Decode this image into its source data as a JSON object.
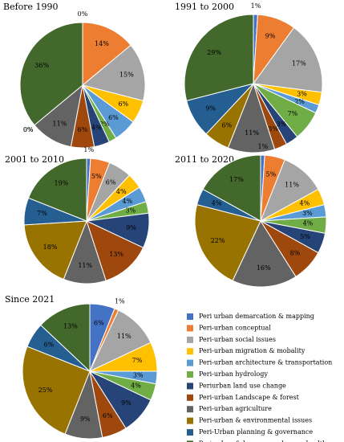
{
  "chart_data": {
    "type": "pie",
    "legend": {
      "placement": "bottom-right",
      "entries": [
        {
          "name": "Peri urban demarcation & mapping",
          "color": "#4472C4"
        },
        {
          "name": "Peri-urban  conceptual",
          "color": "#ED7D31"
        },
        {
          "name": "Peri-urban social issues",
          "color": "#A5A5A5"
        },
        {
          "name": "Peri-urban migration & mobality",
          "color": "#FFC000"
        },
        {
          "name": "Peri-urban architecture & transportation",
          "color": "#5B9BD5"
        },
        {
          "name": "Peri-urban hydrology",
          "color": "#70AD47"
        },
        {
          "name": "Periurban land use change",
          "color": "#264478"
        },
        {
          "name": "Peri-urban Landscape & forest",
          "color": "#9E480E"
        },
        {
          "name": "Peri-urban agriculture",
          "color": "#636363"
        },
        {
          "name": "Peri-urban & environmental issues",
          "color": "#997300"
        },
        {
          "name": "Peri-Urban planning & governance",
          "color": "#255E91"
        },
        {
          "name": "Peri-urban & human non-human health",
          "color": "#43682B"
        }
      ]
    },
    "pies": [
      {
        "title": "Before 1990",
        "values": [
          0,
          14,
          15,
          6,
          6,
          2,
          4,
          6,
          11,
          0,
          0,
          36
        ],
        "labels": [
          "0%",
          "14%",
          "15%",
          "6%",
          "6%",
          "2%",
          "4%",
          "6%",
          "11%",
          "0%",
          "0%",
          "36%"
        ]
      },
      {
        "title": "1991 to 2000",
        "values": [
          1,
          9,
          17,
          3,
          2,
          7,
          3,
          3,
          11,
          6,
          9,
          29
        ],
        "labels": [
          "1%",
          "9%",
          "17%",
          "3%",
          "2%",
          "7%",
          "3%",
          "3%",
          "11%",
          "6%",
          "9%",
          "29%"
        ]
      },
      {
        "title": "2001 to 2010",
        "values": [
          1,
          5,
          6,
          4,
          4,
          3,
          9,
          13,
          11,
          18,
          7,
          19
        ],
        "labels": [
          "1%",
          "5%",
          "6%",
          "4%",
          "4%",
          "3%",
          "9%",
          "13%",
          "11%",
          "18%",
          "7%",
          "19%"
        ]
      },
      {
        "title": "2011 to 2020",
        "values": [
          1,
          5,
          11,
          4,
          3,
          4,
          5,
          8,
          16,
          22,
          4,
          17
        ],
        "labels": [
          "1%",
          "5%",
          "11%",
          "4%",
          "3%",
          "4%",
          "5%",
          "8%",
          "16%",
          "22%",
          "4%",
          "17%"
        ]
      },
      {
        "title": "Since 2021",
        "values": [
          6,
          1,
          11,
          7,
          3,
          4,
          9,
          6,
          9,
          25,
          6,
          13
        ],
        "labels": [
          "6%",
          "1%",
          "11%",
          "7%",
          "3%",
          "4%",
          "9%",
          "6%",
          "9%",
          "25%",
          "6%",
          "13%"
        ]
      }
    ]
  }
}
